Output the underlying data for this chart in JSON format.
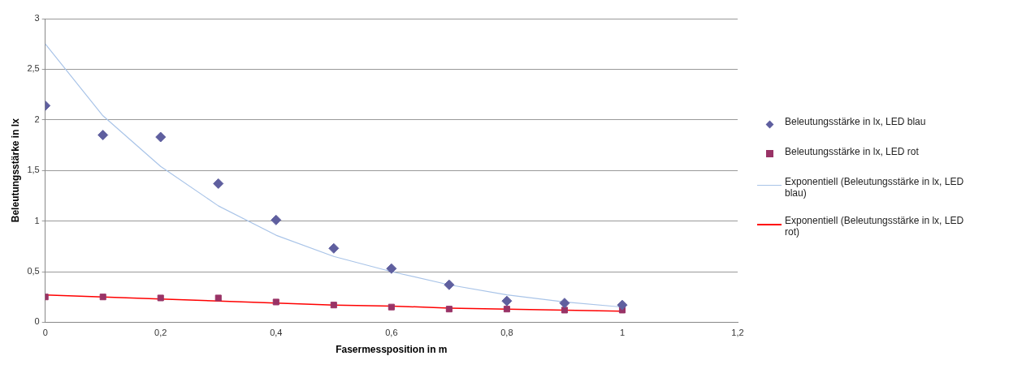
{
  "chart_data": {
    "type": "scatter",
    "xlabel": "Fasermessposition in m",
    "ylabel": "Beleutungsstärke in lx",
    "x": [
      0,
      0.1,
      0.2,
      0.3,
      0.4,
      0.5,
      0.6,
      0.7,
      0.8,
      0.9,
      1
    ],
    "series": [
      {
        "name": "Beleutungsstärke in lx, LED blau",
        "type": "scatter",
        "marker": "diamond",
        "color": "#5f5f9f",
        "values": [
          2.14,
          1.85,
          1.83,
          1.37,
          1.01,
          0.73,
          0.53,
          0.37,
          0.21,
          0.19,
          0.17
        ]
      },
      {
        "name": "Beleutungsstärke in lx, LED rot",
        "type": "scatter",
        "marker": "square",
        "color": "#993366",
        "values": [
          0.25,
          0.25,
          0.24,
          0.24,
          0.2,
          0.17,
          0.15,
          0.13,
          0.13,
          0.12,
          0.12
        ]
      },
      {
        "name": "Exponentiell (Beleutungsstärke in lx, LED blau)",
        "type": "line",
        "marker": "none",
        "color": "#a9c4e8",
        "x": [
          0,
          0.1,
          0.2,
          0.3,
          0.4,
          0.5,
          0.6,
          0.7,
          0.8,
          0.9,
          1
        ],
        "values": [
          2.75,
          2.04,
          1.54,
          1.15,
          0.86,
          0.65,
          0.5,
          0.37,
          0.27,
          0.2,
          0.15
        ]
      },
      {
        "name": "Exponentiell (Beleutungsstärke in lx, LED rot)",
        "type": "line",
        "marker": "none",
        "color": "#ff0000",
        "x": [
          0,
          0.1,
          0.2,
          0.3,
          0.4,
          0.5,
          0.6,
          0.7,
          0.8,
          0.9,
          1
        ],
        "values": [
          0.27,
          0.25,
          0.23,
          0.21,
          0.19,
          0.17,
          0.16,
          0.14,
          0.13,
          0.12,
          0.11
        ]
      }
    ],
    "xlim": [
      0,
      1.2
    ],
    "xticks": [
      0,
      {
        "value": 0.2,
        "label": "0,2"
      },
      {
        "value": 0.4,
        "label": "0,4"
      },
      {
        "value": 0.6,
        "label": "0,6"
      },
      {
        "value": 0.8,
        "label": "0,8"
      },
      1,
      {
        "value": 1.2,
        "label": "1,2"
      }
    ],
    "ylim": [
      0,
      3
    ],
    "yticks": [
      0,
      {
        "value": 0.5,
        "label": "0,5"
      },
      1,
      {
        "value": 1.5,
        "label": "1,5"
      },
      2,
      {
        "value": 2.5,
        "label": "2,5"
      },
      3
    ],
    "grid": "y",
    "legend": "right"
  }
}
